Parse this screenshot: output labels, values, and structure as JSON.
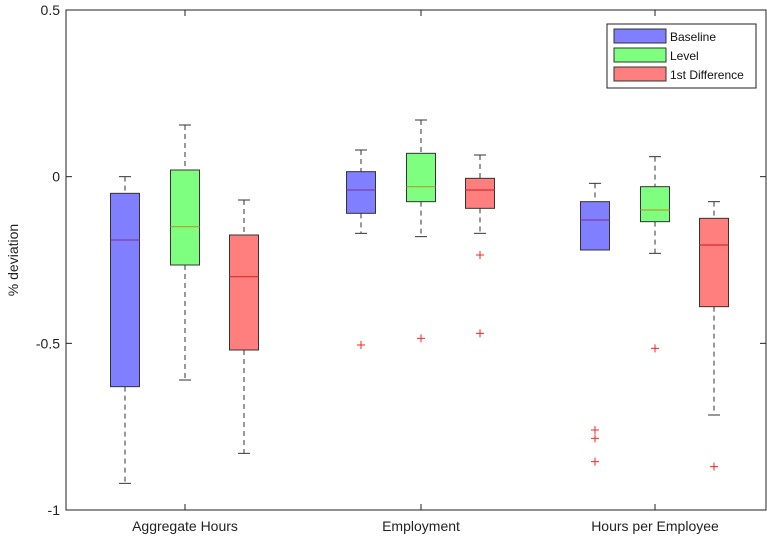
{
  "chart_data": {
    "type": "box",
    "ylabel": "% deviation",
    "xlabel": "",
    "title": "",
    "ylim": [
      -1,
      0.5
    ],
    "yticks": [
      {
        "value": 0.5,
        "label": "0.5"
      },
      {
        "value": 0,
        "label": "0"
      },
      {
        "value": -0.5,
        "label": "-0.5"
      },
      {
        "value": -1,
        "label": "-1"
      }
    ],
    "categories": [
      "Aggregate Hours",
      "Employment",
      "Hours per Employee"
    ],
    "grid": false,
    "legend_position": "top-right",
    "series": [
      {
        "name": "Baseline",
        "color": "#7f7fff",
        "median_color": "#7f3f9f",
        "boxes": [
          {
            "whisker_low": -0.92,
            "q1": -0.63,
            "median": -0.19,
            "q3": -0.05,
            "whisker_high": 0.0,
            "outliers": []
          },
          {
            "whisker_low": -0.17,
            "q1": -0.11,
            "median": -0.04,
            "q3": 0.015,
            "whisker_high": 0.08,
            "outliers": [
              -0.505
            ]
          },
          {
            "whisker_low": -0.22,
            "q1": -0.22,
            "median": -0.13,
            "q3": -0.075,
            "whisker_high": -0.02,
            "outliers": [
              -0.76,
              -0.785,
              -0.855
            ]
          }
        ]
      },
      {
        "name": "Level",
        "color": "#7fff7f",
        "median_color": "#b0a030",
        "boxes": [
          {
            "whisker_low": -0.61,
            "q1": -0.265,
            "median": -0.15,
            "q3": 0.02,
            "whisker_high": 0.155,
            "outliers": []
          },
          {
            "whisker_low": -0.18,
            "q1": -0.075,
            "median": -0.03,
            "q3": 0.07,
            "whisker_high": 0.17,
            "outliers": [
              -0.485
            ]
          },
          {
            "whisker_low": -0.23,
            "q1": -0.135,
            "median": -0.1,
            "q3": -0.03,
            "whisker_high": 0.06,
            "outliers": [
              -0.515
            ]
          }
        ]
      },
      {
        "name": "1st Difference",
        "color": "#ff7f7f",
        "median_color": "#d03030",
        "boxes": [
          {
            "whisker_low": -0.83,
            "q1": -0.52,
            "median": -0.3,
            "q3": -0.175,
            "whisker_high": -0.07,
            "outliers": []
          },
          {
            "whisker_low": -0.17,
            "q1": -0.095,
            "median": -0.04,
            "q3": -0.005,
            "whisker_high": 0.065,
            "outliers": [
              -0.235,
              -0.47
            ]
          },
          {
            "whisker_low": -0.715,
            "q1": -0.39,
            "median": -0.205,
            "q3": -0.125,
            "whisker_high": -0.075,
            "outliers": [
              -0.87
            ]
          }
        ]
      }
    ]
  }
}
